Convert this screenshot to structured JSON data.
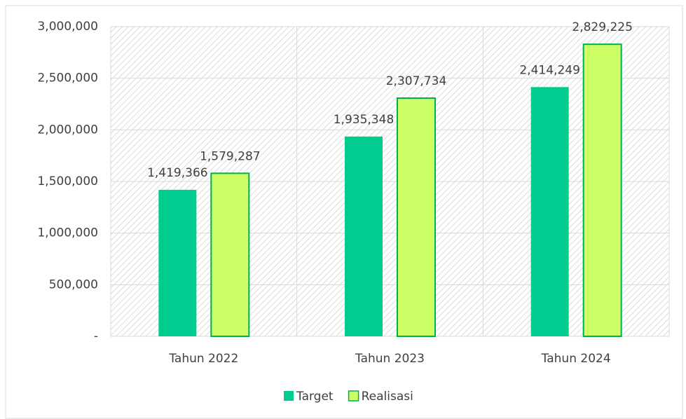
{
  "chart_data": {
    "type": "bar",
    "categories": [
      "Tahun 2022",
      "Tahun 2023",
      "Tahun 2024"
    ],
    "series": [
      {
        "name": "Target",
        "color": "#00cc8f",
        "values": [
          1419366,
          1935348,
          2414249
        ],
        "value_labels": [
          "1,419,366",
          "1,935,348",
          "2,414,249"
        ]
      },
      {
        "name": "Realisasi",
        "color": "#ccff66",
        "values": [
          1579287,
          2307734,
          2829225
        ],
        "value_labels": [
          "1,579,287",
          "2,307,734",
          "2,829,225"
        ]
      }
    ],
    "ylim": [
      0,
      3000000
    ],
    "yticks": [
      {
        "value": 0,
        "label": "-"
      },
      {
        "value": 500000,
        "label": "500,000"
      },
      {
        "value": 1000000,
        "label": "1,000,000"
      },
      {
        "value": 1500000,
        "label": "1,500,000"
      },
      {
        "value": 2000000,
        "label": "2,000,000"
      },
      {
        "value": 2500000,
        "label": "2,500,000"
      },
      {
        "value": 3000000,
        "label": "3,000,000"
      }
    ],
    "grid": true,
    "legend": "bottom"
  }
}
